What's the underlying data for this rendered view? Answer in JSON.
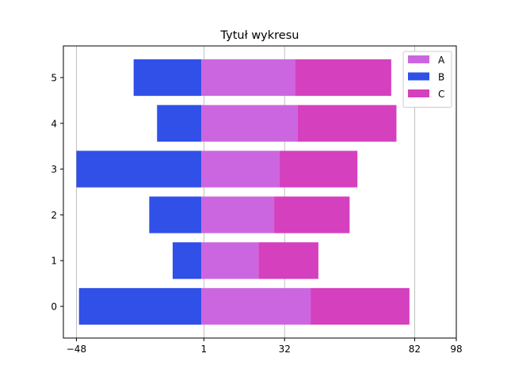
{
  "chart_data": {
    "type": "bar",
    "orientation": "horizontal",
    "stacked": true,
    "title": "Tytuł wykresu",
    "xlabel": "",
    "ylabel": "",
    "categories": [
      "0",
      "1",
      "2",
      "3",
      "4",
      "5"
    ],
    "series": [
      {
        "name": "A",
        "values": [
          42,
          22,
          28,
          30,
          37,
          36
        ],
        "color": "#cc66e0"
      },
      {
        "name": "B",
        "values": [
          -47,
          -11,
          -20,
          -48,
          -17,
          -26
        ],
        "color": "#3050e8"
      },
      {
        "name": "C",
        "values": [
          38,
          23,
          29,
          30,
          38,
          37
        ],
        "color": "#d540bf"
      }
    ],
    "xlim": [
      -53,
      98
    ],
    "x_ticks": [
      {
        "value": -48,
        "label": "−48"
      },
      {
        "value": 1,
        "label": "1"
      },
      {
        "value": 32,
        "label": "32"
      },
      {
        "value": 82,
        "label": "82"
      },
      {
        "value": 98,
        "label": "98"
      }
    ],
    "grid_x": true,
    "legend_position": "top-right"
  }
}
